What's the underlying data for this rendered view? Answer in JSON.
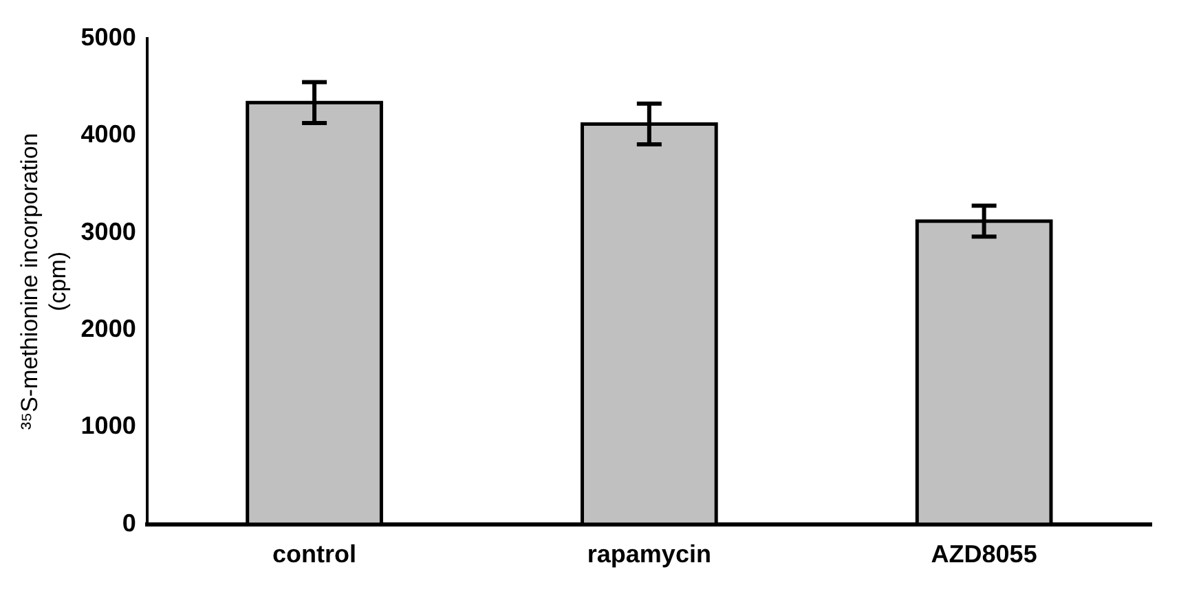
{
  "chart_data": {
    "type": "bar",
    "ylabel": "³⁵S-methionine incorporation (cpm)",
    "categories": [
      "control",
      "rapamycin",
      "AZD8055"
    ],
    "values": [
      4340,
      4120,
      3120
    ],
    "errors": [
      210,
      210,
      160
    ],
    "color": "#c0c0c0",
    "ylim": [
      0,
      5000
    ],
    "yticks": [
      0,
      1000,
      2000,
      3000,
      4000,
      5000
    ],
    "grid": false,
    "legend": false
  }
}
